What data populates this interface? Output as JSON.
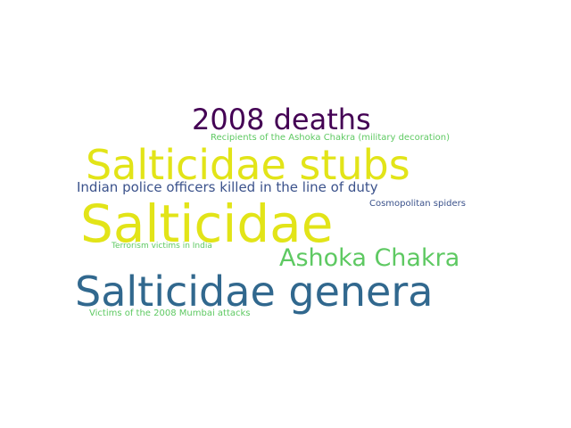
{
  "word_cloud": {
    "words": [
      {
        "text": "2008 deaths",
        "color": "#440154"
      },
      {
        "text": "Recipients of the Ashoka Chakra (military decoration)",
        "color": "#5ec962"
      },
      {
        "text": "Salticidae stubs",
        "color": "#e2e418"
      },
      {
        "text": "Indian police officers killed in the line of duty",
        "color": "#3b528b"
      },
      {
        "text": "Salticidae",
        "color": "#e2e418"
      },
      {
        "text": "Cosmopolitan spiders",
        "color": "#3b528b"
      },
      {
        "text": "Terrorism victims in India",
        "color": "#5ec962"
      },
      {
        "text": "Ashoka Chakra",
        "color": "#5ec962"
      },
      {
        "text": "Salticidae genera",
        "color": "#31688e"
      },
      {
        "text": "Victims of the 2008 Mumbai attacks",
        "color": "#5ec962"
      }
    ]
  }
}
